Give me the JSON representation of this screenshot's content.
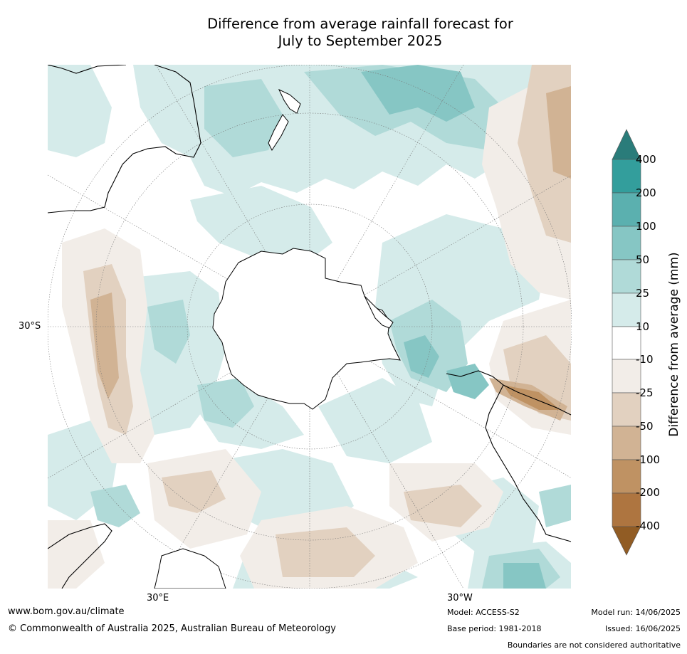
{
  "title": {
    "line1": "Difference from average rainfall forecast for",
    "line2": "July to September 2025"
  },
  "map": {
    "projection": "south-polar-stereographic",
    "lat_label": "30°S",
    "lon_labels": [
      "30°E",
      "30°W"
    ]
  },
  "colorbar": {
    "label": "Difference from average (mm)",
    "ticks": [
      "400",
      "200",
      "100",
      "50",
      "25",
      "10",
      "-10",
      "-25",
      "-50",
      "-100",
      "-200",
      "-400"
    ],
    "colors": {
      "above_400": "#2a7c7a",
      "200_400": "#339e9c",
      "100_200": "#5bb0af",
      "50_100": "#86c6c4",
      "25_50": "#b0dad8",
      "10_25": "#d5ebea",
      "neutral": "#ffffff",
      "minus10_minus25": "#f2ede8",
      "minus25_minus50": "#e2d1c0",
      "minus50_minus100": "#d1b394",
      "minus100_minus200": "#bf9263",
      "minus200_minus400": "#ae7540",
      "below_minus400": "#915c24"
    }
  },
  "footer": {
    "website": "www.bom.gov.au/climate",
    "copyright": "© Commonwealth of Australia 2025, Australian Bureau of Meteorology",
    "model": "Model: ACCESS-S2",
    "base_period": "Base period: 1981-2018",
    "model_run": "Model run: 14/06/2025",
    "issued": "Issued: 16/06/2025",
    "disclaimer": "Boundaries are not considered authoritative"
  }
}
